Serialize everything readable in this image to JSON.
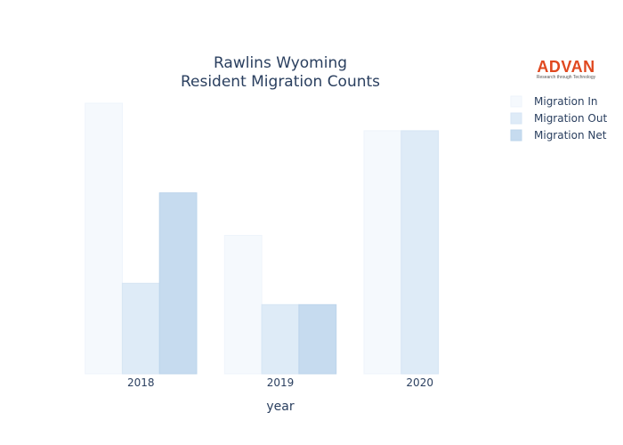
{
  "chart_data": {
    "type": "bar",
    "title": [
      "Rawlins Wyoming",
      "Resident Migration Counts"
    ],
    "xlabel": "year",
    "ylabel": "",
    "categories": [
      "2018",
      "2019",
      "2020"
    ],
    "series": [
      {
        "name": "Migration In",
        "values": [
          305,
          156,
          274
        ],
        "color": "#f5f9fd",
        "stroke": "#eef4fb"
      },
      {
        "name": "Migration Out",
        "values": [
          102,
          78,
          274
        ],
        "color": "#deebf7",
        "stroke": "#d6e5f4"
      },
      {
        "name": "Migration Net",
        "values": [
          204,
          78,
          0
        ],
        "color": "#c6dbef",
        "stroke": "#bcd4eb"
      }
    ],
    "ylim": [
      0,
      305
    ],
    "grid": false,
    "legend_position": "top-right"
  },
  "logo": {
    "name": "ADVAN",
    "tagline": "Research through Technology",
    "color": "#e0481f"
  }
}
